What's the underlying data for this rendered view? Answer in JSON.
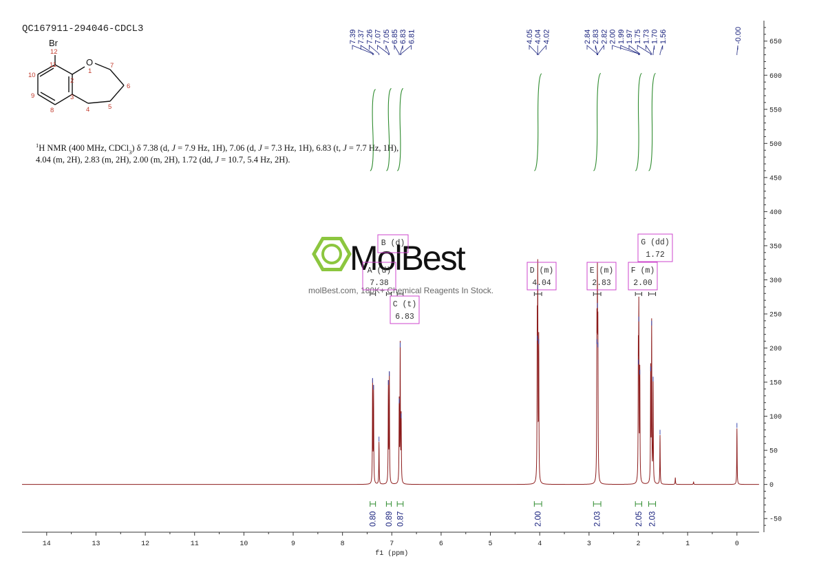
{
  "sample_id": "QC167911-294046-CDCL3",
  "description": {
    "line1": [
      {
        "t": "1",
        "sup": true
      },
      {
        "t": "H NMR (400 MHz, CDCl"
      },
      {
        "t": "3",
        "sub": true
      },
      {
        "t": ") δ 7.38 (d, "
      },
      {
        "t": "J",
        "i": true
      },
      {
        "t": " = 7.9 Hz, 1H), 7.06 (d, "
      },
      {
        "t": "J",
        "i": true
      },
      {
        "t": " = 7.3 Hz, 1H), 6.83 (t, "
      },
      {
        "t": "J",
        "i": true
      },
      {
        "t": " = 7.7 Hz, 1H),"
      }
    ],
    "line2": [
      {
        "t": "4.04 (m, 2H), 2.83 (m, 2H), 2.00 (m, 2H), 1.72 (dd, "
      },
      {
        "t": "J",
        "i": true
      },
      {
        "t": " = 10.7, 5.4 Hz, 2H)."
      }
    ]
  },
  "structure": {
    "atoms": [
      {
        "sym": "Br",
        "num": "12"
      },
      {
        "sym": "O",
        "num": "1"
      },
      {
        "num": "2"
      },
      {
        "num": "3"
      },
      {
        "num": "4"
      },
      {
        "num": "5"
      },
      {
        "num": "6"
      },
      {
        "num": "7"
      },
      {
        "num": "8"
      },
      {
        "num": "9"
      },
      {
        "num": "10"
      },
      {
        "num": "11"
      }
    ]
  },
  "watermark": {
    "logo": "MolBest",
    "tagline": "molBest.com, 180K+ Chemical Reagents In Stock."
  },
  "colors": {
    "spectrum": "#8b1a1a",
    "integral": "#2e8b2e",
    "label": "#1a237e",
    "multiplet_box": "#cc44cc",
    "logo_green": "#8cc63f",
    "atom_number": "#c0392b"
  },
  "chart_data": {
    "type": "line",
    "xlabel": "f1 (ppm)",
    "xlim": [
      14.5,
      -0.45
    ],
    "ylim": [
      -70,
      680
    ],
    "x_reversed": true,
    "x_ticks": [
      "14",
      "13",
      "12",
      "11",
      "10",
      "9",
      "8",
      "7",
      "6",
      "5",
      "4",
      "3",
      "2",
      "1",
      "0"
    ],
    "y_ticks": [
      "650",
      "600",
      "550",
      "500",
      "450",
      "400",
      "350",
      "300",
      "250",
      "200",
      "150",
      "100",
      "50",
      "0",
      "-50"
    ],
    "peaks": [
      {
        "ppm": 7.39,
        "height": 148
      },
      {
        "ppm": 7.37,
        "height": 138
      },
      {
        "ppm": 7.26,
        "height": 62
      },
      {
        "ppm": 7.07,
        "height": 145
      },
      {
        "ppm": 7.05,
        "height": 158
      },
      {
        "ppm": 6.85,
        "height": 118
      },
      {
        "ppm": 6.83,
        "height": 200
      },
      {
        "ppm": 6.81,
        "height": 96
      },
      {
        "ppm": 4.05,
        "height": 210
      },
      {
        "ppm": 4.04,
        "height": 285
      },
      {
        "ppm": 4.02,
        "height": 205
      },
      {
        "ppm": 2.84,
        "height": 205
      },
      {
        "ppm": 2.83,
        "height": 258
      },
      {
        "ppm": 2.82,
        "height": 200
      },
      {
        "ppm": 2.0,
        "height": 175
      },
      {
        "ppm": 1.99,
        "height": 238
      },
      {
        "ppm": 1.97,
        "height": 160
      },
      {
        "ppm": 1.75,
        "height": 165
      },
      {
        "ppm": 1.73,
        "height": 232
      },
      {
        "ppm": 1.7,
        "height": 150
      },
      {
        "ppm": 1.56,
        "height": 72
      },
      {
        "ppm": 1.25,
        "height": 10
      },
      {
        "ppm": 0.88,
        "height": 4
      },
      {
        "ppm": 0.0,
        "height": 82
      }
    ],
    "peak_labels": [
      {
        "group": [
          "7.39",
          "7.37",
          "7.26",
          "7.07",
          "7.05",
          "6.85",
          "6.83",
          "6.81"
        ]
      },
      {
        "group": [
          "4.05",
          "4.04",
          "4.02"
        ]
      },
      {
        "group": [
          "2.84",
          "2.83",
          "2.82",
          "2.00",
          "1.99",
          "1.97",
          "1.75",
          "1.73",
          "1.70",
          "1.56"
        ]
      },
      {
        "group": [
          "-0.00"
        ]
      }
    ],
    "integrals": [
      {
        "from": 7.44,
        "to": 7.33,
        "value": "0.80",
        "top": 520,
        "bottom": 460
      },
      {
        "from": 7.11,
        "to": 7.01,
        "value": "0.89",
        "top": 525,
        "bottom": 460
      },
      {
        "from": 6.89,
        "to": 6.77,
        "value": "0.87",
        "top": 525,
        "bottom": 460
      },
      {
        "from": 4.11,
        "to": 3.96,
        "value": "2.00",
        "top": 605,
        "bottom": 460
      },
      {
        "from": 2.91,
        "to": 2.76,
        "value": "2.03",
        "top": 607,
        "bottom": 460
      },
      {
        "from": 2.06,
        "to": 1.93,
        "value": "2.05",
        "top": 607,
        "bottom": 460
      },
      {
        "from": 1.79,
        "to": 1.65,
        "value": "2.03",
        "top": 607,
        "bottom": 460
      }
    ],
    "multiplets": [
      {
        "letter": "A",
        "mult": "d",
        "shift": "7.38",
        "from": 7.44,
        "to": 7.33
      },
      {
        "letter": "B",
        "mult": "d",
        "shift": "7.06",
        "from": 7.11,
        "to": 7.01
      },
      {
        "letter": "C",
        "mult": "t",
        "shift": "6.83",
        "from": 6.89,
        "to": 6.77
      },
      {
        "letter": "D",
        "mult": "m",
        "shift": "4.04",
        "from": 4.11,
        "to": 3.96
      },
      {
        "letter": "E",
        "mult": "m",
        "shift": "2.83",
        "from": 2.91,
        "to": 2.76
      },
      {
        "letter": "F",
        "mult": "m",
        "shift": "2.00",
        "from": 2.06,
        "to": 1.93
      },
      {
        "letter": "G",
        "mult": "dd",
        "shift": "1.72",
        "from": 1.79,
        "to": 1.65
      }
    ]
  }
}
